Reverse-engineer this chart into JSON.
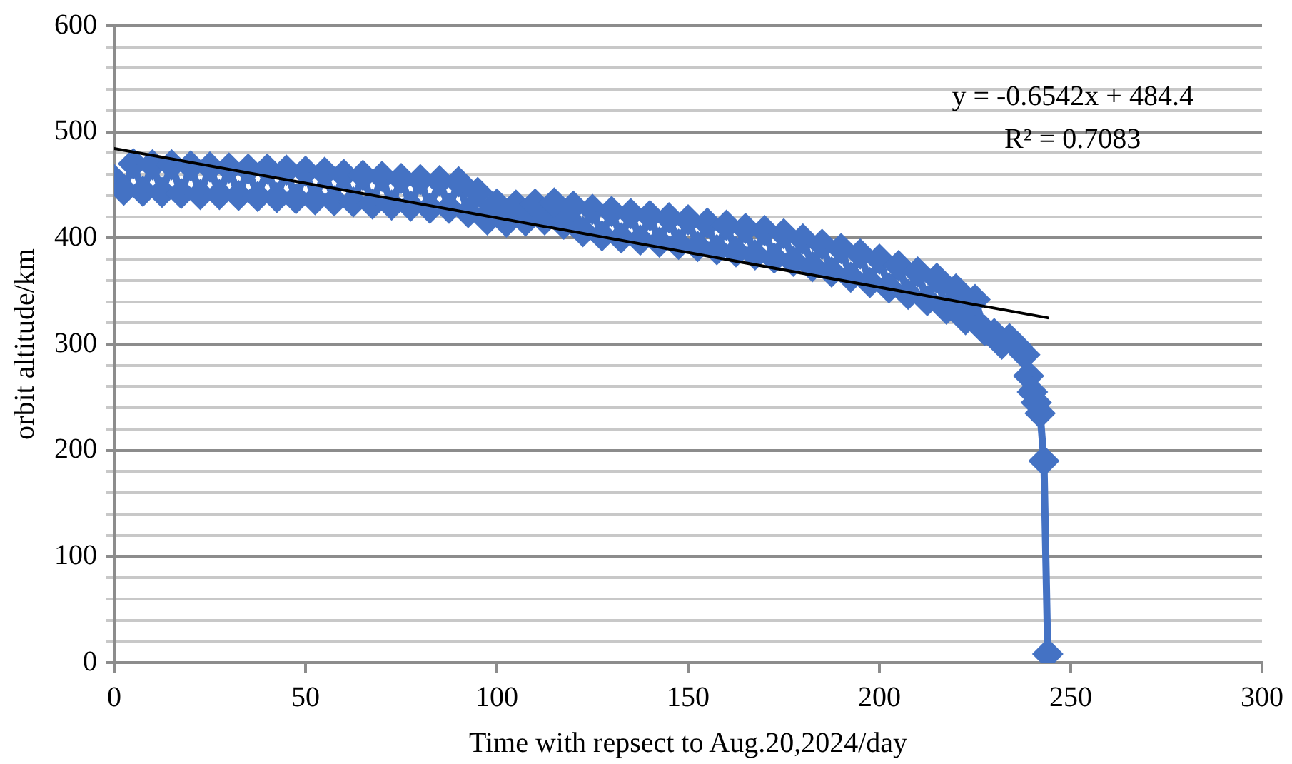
{
  "chart_data": {
    "type": "line",
    "xlabel": "Time with repsect to Aug.20,2024/day",
    "ylabel": "orbit altitude/km",
    "x": [
      0,
      2.5,
      5,
      7.5,
      10,
      12.5,
      15,
      17.5,
      20,
      22.5,
      25,
      27.5,
      30,
      32.5,
      35,
      37.5,
      40,
      42.5,
      45,
      47.5,
      50,
      52.5,
      55,
      57.5,
      60,
      62.5,
      65,
      67.5,
      70,
      72.5,
      75,
      77.5,
      80,
      82.5,
      85,
      87.5,
      90,
      92.5,
      95,
      97.5,
      100,
      102.5,
      105,
      107.5,
      110,
      112.5,
      115,
      117.5,
      120,
      122.5,
      125,
      127.5,
      130,
      132.5,
      135,
      137.5,
      140,
      142.5,
      145,
      147.5,
      150,
      152.5,
      155,
      157.5,
      160,
      162.5,
      165,
      167.5,
      170,
      172.5,
      175,
      177.5,
      180,
      182.5,
      185,
      187.5,
      190,
      192.5,
      195,
      197.5,
      200,
      202.5,
      205,
      207.5,
      210,
      212.5,
      215,
      217.5,
      220,
      222.5,
      225,
      227.5,
      230,
      232,
      234,
      236,
      238,
      239,
      240,
      241,
      242,
      243,
      244
    ],
    "series": [
      {
        "color": "#4472c4",
        "marker": "diamond",
        "values": [
          455,
          445,
          470,
          444,
          469,
          443,
          469,
          442,
          468,
          441,
          467,
          441,
          466,
          440,
          465,
          439,
          465,
          438,
          464,
          437,
          463,
          436,
          462,
          435,
          460,
          434,
          459,
          432,
          458,
          431,
          456,
          430,
          455,
          428,
          454,
          428,
          453,
          424,
          443,
          417,
          432,
          415,
          431,
          416,
          432,
          417,
          433,
          413,
          430,
          406,
          427,
          402,
          425,
          400,
          423,
          398,
          421,
          396,
          419,
          394,
          417,
          392,
          414,
          389,
          412,
          387,
          409,
          384,
          407,
          381,
          404,
          378,
          399,
          373,
          394,
          368,
          390,
          363,
          385,
          358,
          380,
          353,
          374,
          347,
          368,
          341,
          362,
          333,
          352,
          323,
          342,
          313,
          310,
          300,
          305,
          298,
          290,
          270,
          255,
          245,
          235,
          190,
          8
        ]
      },
      {
        "type": "line",
        "color": "#000000",
        "marker": "none",
        "x": [
          0,
          244
        ],
        "values": [
          484.4,
          324.8
        ]
      }
    ],
    "xlim": [
      0,
      300
    ],
    "xticks": [
      0,
      50,
      100,
      150,
      200,
      250,
      300
    ],
    "ylim": [
      0,
      600
    ],
    "yticks": [
      0,
      {
        "value": 20,
        "label": null
      },
      {
        "value": 40,
        "label": null
      },
      {
        "value": 60,
        "label": null
      },
      {
        "value": 80,
        "label": null
      },
      100,
      {
        "value": 120,
        "label": null
      },
      {
        "value": 140,
        "label": null
      },
      {
        "value": 160,
        "label": null
      },
      {
        "value": 180,
        "label": null
      },
      200,
      {
        "value": 220,
        "label": null
      },
      {
        "value": 240,
        "label": null
      },
      {
        "value": 260,
        "label": null
      },
      {
        "value": 280,
        "label": null
      },
      300,
      {
        "value": 320,
        "label": null
      },
      {
        "value": 340,
        "label": null
      },
      {
        "value": 360,
        "label": null
      },
      {
        "value": 380,
        "label": null
      },
      400,
      {
        "value": 420,
        "label": null
      },
      {
        "value": 440,
        "label": null
      },
      {
        "value": 460,
        "label": null
      },
      {
        "value": 480,
        "label": null
      },
      500,
      {
        "value": 520,
        "label": null
      },
      {
        "value": 540,
        "label": null
      },
      {
        "value": 560,
        "label": null
      },
      {
        "value": 580,
        "label": null
      },
      600
    ],
    "grid": "y",
    "legend": false,
    "annotations": [
      "y = -0.6542x + 484.4",
      "R² = 0.7083"
    ]
  }
}
